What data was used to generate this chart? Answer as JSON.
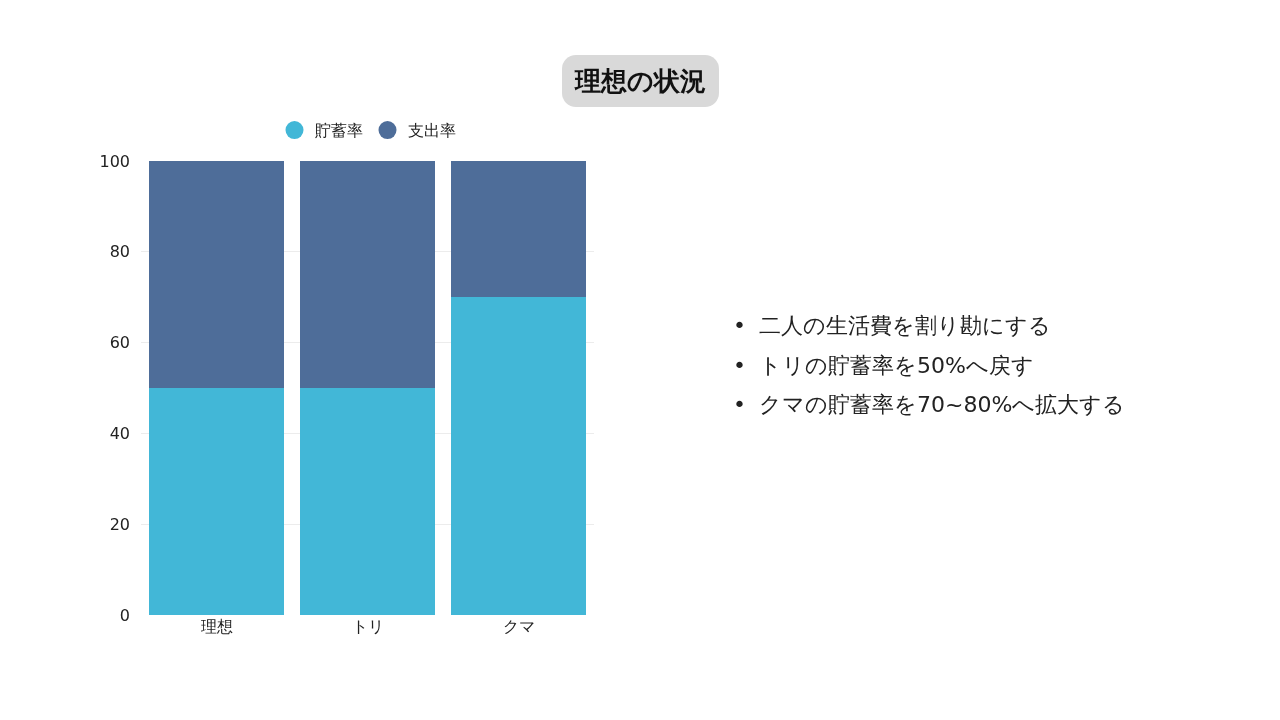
{
  "chart_data": {
    "type": "bar",
    "title": "理想の状況",
    "categories": [
      "理想",
      "トリ",
      "クマ"
    ],
    "series": [
      {
        "name": "貯蓄率",
        "color": "#42b7d7",
        "values": [
          50,
          50,
          70
        ]
      },
      {
        "name": "支出率",
        "color": "#4e6d99",
        "values": [
          50,
          50,
          30
        ]
      }
    ],
    "stacked": true,
    "ylim": [
      0,
      100
    ],
    "yticks": [
      0,
      20,
      40,
      60,
      80,
      100
    ],
    "grid": "y",
    "legend": "top",
    "annotations": [
      "• 二人の生活費を割り勘にする",
      "• トリの貯蓄率を50%へ戻す",
      "• クマの貯蓄率を70~80%へ拡大する"
    ]
  }
}
